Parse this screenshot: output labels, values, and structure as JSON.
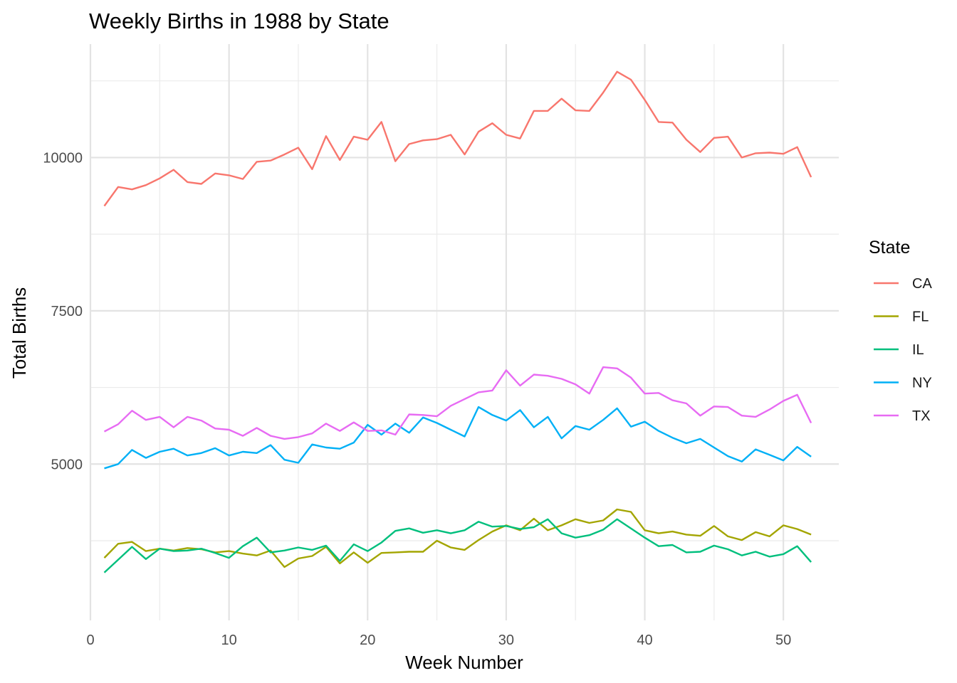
{
  "chart_data": {
    "type": "line",
    "title": "Weekly Births in 1988 by State",
    "xlabel": "Week Number",
    "ylabel": "Total Births",
    "xlim": [
      0,
      54
    ],
    "ylim": [
      2450,
      11850
    ],
    "x_ticks": [
      0,
      10,
      20,
      30,
      40,
      50
    ],
    "y_ticks": [
      5000,
      7500,
      10000
    ],
    "grid": true,
    "legend": {
      "title": "State",
      "position": "right"
    },
    "x": [
      1,
      2,
      3,
      4,
      5,
      6,
      7,
      8,
      9,
      10,
      11,
      12,
      13,
      14,
      15,
      16,
      17,
      18,
      19,
      20,
      21,
      22,
      23,
      24,
      25,
      26,
      27,
      28,
      29,
      30,
      31,
      32,
      33,
      34,
      35,
      36,
      37,
      38,
      39,
      40,
      41,
      42,
      43,
      44,
      45,
      46,
      47,
      48,
      49,
      50,
      51,
      52
    ],
    "series": [
      {
        "name": "CA",
        "color": "#F8766D",
        "values": [
          9210,
          9520,
          9480,
          9550,
          9660,
          9800,
          9600,
          9570,
          9740,
          9710,
          9650,
          9930,
          9950,
          10050,
          10160,
          9810,
          10350,
          9960,
          10340,
          10290,
          10580,
          9940,
          10220,
          10280,
          10300,
          10370,
          10050,
          10420,
          10560,
          10370,
          10310,
          10760,
          10760,
          10960,
          10770,
          10760,
          11060,
          11400,
          11270,
          10940,
          10580,
          10570,
          10290,
          10090,
          10320,
          10340,
          10000,
          10070,
          10080,
          10060,
          10170,
          9680
        ]
      },
      {
        "name": "FL",
        "color": "#A3A500",
        "values": [
          3470,
          3700,
          3730,
          3580,
          3620,
          3590,
          3630,
          3610,
          3560,
          3580,
          3540,
          3510,
          3590,
          3320,
          3460,
          3500,
          3650,
          3380,
          3560,
          3390,
          3550,
          3560,
          3570,
          3570,
          3750,
          3640,
          3600,
          3760,
          3900,
          4000,
          3920,
          4110,
          3920,
          4000,
          4100,
          4040,
          4080,
          4260,
          4220,
          3920,
          3870,
          3900,
          3850,
          3830,
          3990,
          3820,
          3760,
          3890,
          3820,
          4000,
          3940,
          3850
        ]
      },
      {
        "name": "IL",
        "color": "#00BF7D",
        "values": [
          3230,
          3440,
          3650,
          3450,
          3620,
          3580,
          3590,
          3620,
          3550,
          3470,
          3660,
          3800,
          3560,
          3590,
          3640,
          3600,
          3670,
          3420,
          3690,
          3580,
          3720,
          3910,
          3950,
          3880,
          3920,
          3870,
          3920,
          4060,
          3980,
          3990,
          3940,
          3970,
          4100,
          3870,
          3800,
          3840,
          3930,
          4100,
          3950,
          3800,
          3660,
          3680,
          3560,
          3570,
          3670,
          3610,
          3510,
          3570,
          3490,
          3530,
          3660,
          3400
        ]
      },
      {
        "name": "NY",
        "color": "#00B0F6",
        "values": [
          4930,
          5000,
          5230,
          5100,
          5200,
          5250,
          5140,
          5180,
          5260,
          5140,
          5200,
          5180,
          5310,
          5070,
          5020,
          5320,
          5270,
          5250,
          5350,
          5640,
          5480,
          5660,
          5510,
          5760,
          5670,
          5560,
          5450,
          5930,
          5800,
          5710,
          5880,
          5600,
          5770,
          5420,
          5620,
          5560,
          5720,
          5910,
          5610,
          5690,
          5540,
          5430,
          5340,
          5410,
          5270,
          5130,
          5040,
          5240,
          5150,
          5060,
          5280,
          5120
        ]
      },
      {
        "name": "TX",
        "color": "#E76BF3",
        "values": [
          5530,
          5650,
          5870,
          5720,
          5770,
          5600,
          5770,
          5710,
          5580,
          5560,
          5460,
          5590,
          5460,
          5410,
          5440,
          5500,
          5660,
          5540,
          5680,
          5540,
          5550,
          5480,
          5810,
          5800,
          5780,
          5950,
          6060,
          6170,
          6200,
          6530,
          6280,
          6460,
          6440,
          6390,
          6300,
          6150,
          6580,
          6560,
          6410,
          6150,
          6160,
          6040,
          5990,
          5790,
          5940,
          5930,
          5790,
          5770,
          5890,
          6030,
          6130,
          5670
        ]
      }
    ]
  }
}
